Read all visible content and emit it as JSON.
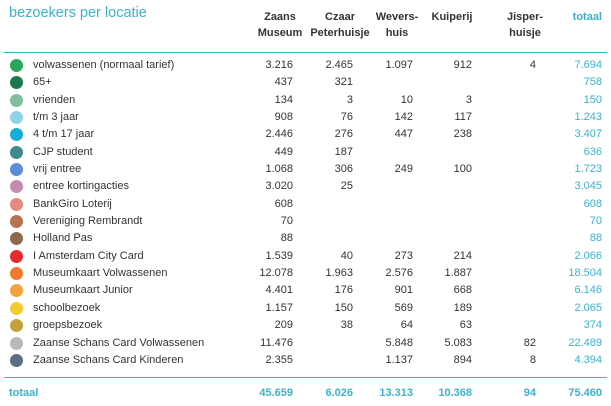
{
  "title": "bezoekers per locatie",
  "columns": [
    {
      "lines": [
        "Zaans",
        "Museum"
      ]
    },
    {
      "lines": [
        "Czaar",
        "Peterhuisje"
      ]
    },
    {
      "lines": [
        "Wevers-",
        "huis"
      ]
    },
    {
      "lines": [
        "Kuiperij"
      ]
    },
    {
      "lines": [
        "Jisper-",
        "huisje"
      ]
    },
    {
      "lines": [
        "totaal"
      ]
    }
  ],
  "rows": [
    {
      "label": "volwassenen (normaal tarief)",
      "color": "#2aa65a",
      "values": [
        "3.216",
        "2.465",
        "1.097",
        "912",
        "4",
        "7.694"
      ]
    },
    {
      "label": "65+",
      "color": "#1e7a4c",
      "values": [
        "437",
        "321",
        "",
        "",
        "",
        "758"
      ]
    },
    {
      "label": "vrienden",
      "color": "#7fbf9e",
      "values": [
        "134",
        "3",
        "10",
        "3",
        "",
        "150"
      ]
    },
    {
      "label": "t/m 3 jaar",
      "color": "#8fd3e6",
      "values": [
        "908",
        "76",
        "142",
        "117",
        "",
        "1.243"
      ]
    },
    {
      "label": "4 t/m 17 jaar",
      "color": "#16aed6",
      "values": [
        "2.446",
        "276",
        "447",
        "238",
        "",
        "3.407"
      ]
    },
    {
      "label": "CJP student",
      "color": "#3e8a8e",
      "values": [
        "449",
        "187",
        "",
        "",
        "",
        "636"
      ]
    },
    {
      "label": "vrij entree",
      "color": "#5b8ed6",
      "values": [
        "1.068",
        "306",
        "249",
        "100",
        "",
        "1.723"
      ]
    },
    {
      "label": "entree kortingacties",
      "color": "#c88bb0",
      "values": [
        "3.020",
        "25",
        "",
        "",
        "",
        "3.045"
      ]
    },
    {
      "label": "BankGiro Loterij",
      "color": "#e58a80",
      "values": [
        "608",
        "",
        "",
        "",
        "",
        "608"
      ]
    },
    {
      "label": "Vereniging Rembrandt",
      "color": "#b5744e",
      "values": [
        "70",
        "",
        "",
        "",
        "",
        "70"
      ]
    },
    {
      "label": "Holland Pas",
      "color": "#8c6a4a",
      "values": [
        "88",
        "",
        "",
        "",
        "",
        "88"
      ]
    },
    {
      "label": "I Amsterdam City Card",
      "color": "#e42c2c",
      "values": [
        "1.539",
        "40",
        "273",
        "214",
        "",
        "2.066"
      ]
    },
    {
      "label": "Museumkaart Volwassenen",
      "color": "#f07a2a",
      "values": [
        "12.078",
        "1.963",
        "2.576",
        "1.887",
        "",
        "18.504"
      ]
    },
    {
      "label": "Museumkaart Junior",
      "color": "#f2a33a",
      "values": [
        "4.401",
        "176",
        "901",
        "668",
        "",
        "6.146"
      ]
    },
    {
      "label": "schoolbezoek",
      "color": "#f2cc2e",
      "values": [
        "1.157",
        "150",
        "569",
        "189",
        "",
        "2.065"
      ]
    },
    {
      "label": "groepsbezoek",
      "color": "#c4a03a",
      "values": [
        "209",
        "38",
        "64",
        "63",
        "",
        "374"
      ]
    },
    {
      "label": "Zaanse Schans Card Volwassenen",
      "color": "#b9b9b9",
      "values": [
        "11.476",
        "",
        "5.848",
        "5.083",
        "82",
        "22.489"
      ]
    },
    {
      "label": "Zaanse Schans Card Kinderen",
      "color": "#5c6e80",
      "values": [
        "2.355",
        "",
        "1.137",
        "894",
        "8",
        "4.394"
      ]
    }
  ],
  "totals": {
    "label": "totaal",
    "values": [
      "45.659",
      "6.026",
      "13.313",
      "10.368",
      "94",
      "75.460"
    ]
  },
  "colors": {
    "accent": "#3bb4c9",
    "text": "#333333"
  }
}
